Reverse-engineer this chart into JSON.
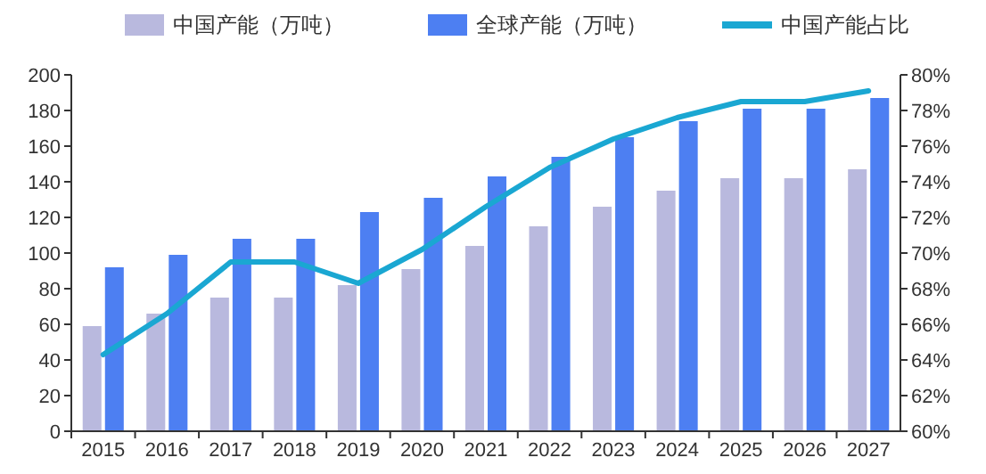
{
  "chart_data": {
    "type": "bar",
    "categories": [
      "2015",
      "2016",
      "2017",
      "2018",
      "2019",
      "2020",
      "2021",
      "2022",
      "2023",
      "2024",
      "2025",
      "2026",
      "2027"
    ],
    "series": [
      {
        "name": "中国产能（万吨）",
        "color": "#b9b9de",
        "values": [
          59,
          66,
          75,
          75,
          82,
          91,
          104,
          115,
          126,
          135,
          142,
          142,
          147
        ]
      },
      {
        "name": "全球产能（万吨）",
        "color": "#4d7ff2",
        "values": [
          92,
          99,
          108,
          108,
          123,
          131,
          143,
          154,
          165,
          174,
          181,
          181,
          187
        ]
      },
      {
        "name": "中国产能占比",
        "type": "line",
        "axis": "y2",
        "color": "#1aa7d2",
        "values": [
          64.3,
          66.6,
          69.5,
          69.5,
          68.3,
          70.2,
          72.6,
          74.8,
          76.4,
          77.6,
          78.5,
          78.5,
          79.1
        ]
      }
    ],
    "ylim": [
      0,
      200
    ],
    "yticks": [
      0,
      20,
      40,
      60,
      80,
      100,
      120,
      140,
      160,
      180,
      200
    ],
    "y2lim": [
      60,
      80
    ],
    "y2ticks": [
      {
        "value": 60,
        "label": "60%"
      },
      {
        "value": 62,
        "label": "62%"
      },
      {
        "value": 64,
        "label": "64%"
      },
      {
        "value": 66,
        "label": "66%"
      },
      {
        "value": 68,
        "label": "68%"
      },
      {
        "value": 70,
        "label": "70%"
      },
      {
        "value": 72,
        "label": "72%"
      },
      {
        "value": 74,
        "label": "74%"
      },
      {
        "value": 76,
        "label": "76%"
      },
      {
        "value": 78,
        "label": "78%"
      },
      {
        "value": 80,
        "label": "80%"
      }
    ],
    "legend": "top",
    "grid": false,
    "marker": "none"
  }
}
